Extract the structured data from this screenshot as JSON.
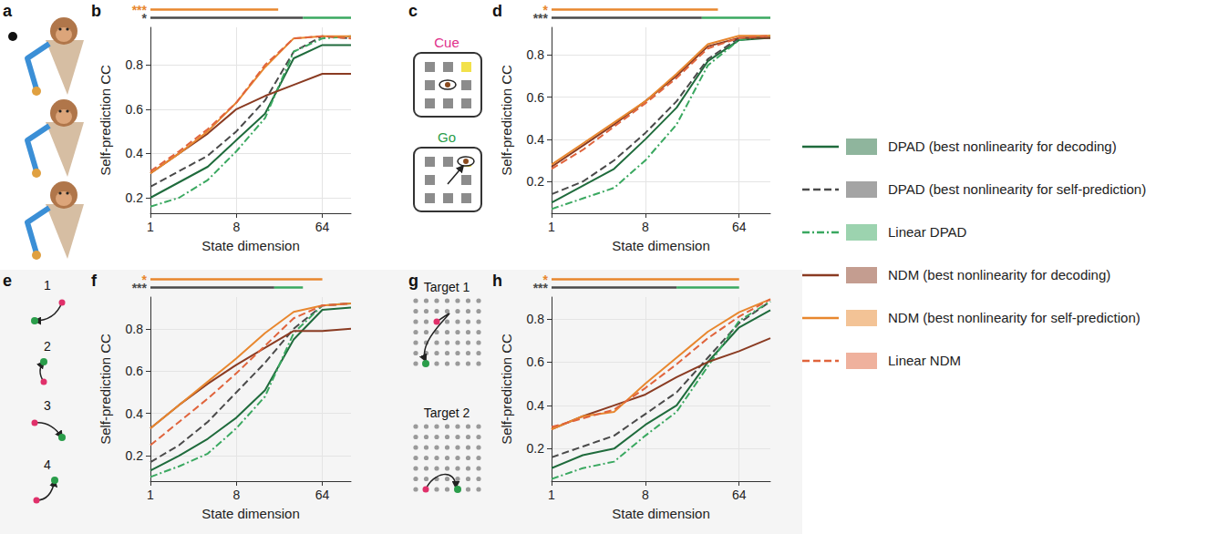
{
  "chart_data": [
    {
      "type": "line",
      "panel_label": "b",
      "x_label": "State dimension",
      "y_label": "Self-prediction CC",
      "log": "x",
      "grid": true,
      "legend": "right",
      "x": [
        1,
        2,
        4,
        8,
        16,
        32,
        64,
        128
      ],
      "xlim": [
        1,
        128
      ],
      "xticks": [
        1,
        8,
        64
      ],
      "ylim": [
        0.13,
        0.97
      ],
      "yticks": [
        0.2,
        0.4,
        0.6,
        0.8
      ],
      "series": [
        {
          "name": "DPAD (best nonlinearity for decoding)",
          "color": "#1f6b3c",
          "line_style": "solid",
          "values": [
            0.2,
            0.27,
            0.34,
            0.46,
            0.58,
            0.83,
            0.89,
            0.89
          ]
        },
        {
          "name": "DPAD (best nonlinearity for self-prediction)",
          "color": "#4a4a4a",
          "line_style": "dashed",
          "values": [
            0.25,
            0.32,
            0.39,
            0.5,
            0.64,
            0.86,
            0.93,
            0.92
          ]
        },
        {
          "name": "Linear DPAD",
          "color": "#3aa860",
          "line_style": "dashdot",
          "values": [
            0.16,
            0.2,
            0.28,
            0.41,
            0.56,
            0.86,
            0.92,
            0.93
          ]
        },
        {
          "name": "NDM (best nonlinearity for decoding)",
          "color": "#8a3b22",
          "line_style": "solid",
          "values": [
            0.31,
            0.4,
            0.49,
            0.6,
            0.66,
            0.71,
            0.76,
            0.76
          ]
        },
        {
          "name": "NDM (best nonlinearity for self-prediction)",
          "color": "#e8872e",
          "line_style": "solid",
          "values": [
            0.31,
            0.4,
            0.5,
            0.63,
            0.79,
            0.92,
            0.93,
            0.93
          ]
        },
        {
          "name": "Linear NDM",
          "color": "#e0643c",
          "line_style": "dashed",
          "values": [
            0.32,
            0.41,
            0.51,
            0.63,
            0.8,
            0.92,
            0.93,
            0.92
          ]
        }
      ],
      "significance": [
        {
          "label": "***",
          "color": "#e8872e",
          "segments": [
            {
              "from": 1,
              "to": 22,
              "color": "#e8872e"
            }
          ]
        },
        {
          "label": "*",
          "color": "#4a4a4a",
          "segments": [
            {
              "from": 1,
              "to": 40,
              "color": "#4a4a4a"
            },
            {
              "from": 40,
              "to": 128,
              "color": "#3aa860"
            }
          ]
        }
      ]
    },
    {
      "type": "line",
      "panel_label": "d",
      "x_label": "State dimension",
      "y_label": "Self-prediction CC",
      "log": "x",
      "grid": true,
      "legend": "right",
      "x": [
        1,
        2,
        4,
        8,
        16,
        32,
        64,
        128
      ],
      "xlim": [
        1,
        128
      ],
      "xticks": [
        1,
        8,
        64
      ],
      "ylim": [
        0.05,
        0.93
      ],
      "yticks": [
        0.2,
        0.4,
        0.6,
        0.8
      ],
      "series": [
        {
          "name": "DPAD (best nonlinearity for decoding)",
          "color": "#1f6b3c",
          "line_style": "solid",
          "values": [
            0.1,
            0.18,
            0.26,
            0.4,
            0.55,
            0.77,
            0.87,
            0.88
          ]
        },
        {
          "name": "DPAD (best nonlinearity for self-prediction)",
          "color": "#4a4a4a",
          "line_style": "dashed",
          "values": [
            0.14,
            0.2,
            0.3,
            0.43,
            0.58,
            0.78,
            0.88,
            0.88
          ]
        },
        {
          "name": "Linear DPAD",
          "color": "#3aa860",
          "line_style": "dashdot",
          "values": [
            0.07,
            0.12,
            0.17,
            0.3,
            0.47,
            0.75,
            0.87,
            0.89
          ]
        },
        {
          "name": "NDM (best nonlinearity for decoding)",
          "color": "#8a3b22",
          "line_style": "solid",
          "values": [
            0.27,
            0.37,
            0.47,
            0.58,
            0.7,
            0.84,
            0.88,
            0.88
          ]
        },
        {
          "name": "NDM (best nonlinearity for self-prediction)",
          "color": "#e8872e",
          "line_style": "solid",
          "values": [
            0.28,
            0.38,
            0.48,
            0.58,
            0.71,
            0.85,
            0.89,
            0.89
          ]
        },
        {
          "name": "Linear NDM",
          "color": "#e0643c",
          "line_style": "dashed",
          "values": [
            0.26,
            0.35,
            0.46,
            0.57,
            0.69,
            0.83,
            0.88,
            0.89
          ]
        }
      ],
      "significance": [
        {
          "label": "*",
          "color": "#e8872e",
          "segments": [
            {
              "from": 1,
              "to": 40,
              "color": "#e8872e"
            }
          ]
        },
        {
          "label": "***",
          "color": "#4a4a4a",
          "segments": [
            {
              "from": 1,
              "to": 28,
              "color": "#4a4a4a"
            },
            {
              "from": 28,
              "to": 128,
              "color": "#3aa860"
            }
          ]
        }
      ]
    },
    {
      "type": "line",
      "panel_label": "f",
      "x_label": "State dimension",
      "y_label": "Self-prediction CC",
      "log": "x",
      "grid": true,
      "legend": "right",
      "x": [
        1,
        2,
        4,
        8,
        16,
        32,
        64,
        128
      ],
      "xlim": [
        1,
        128
      ],
      "xticks": [
        1,
        8,
        64
      ],
      "ylim": [
        0.08,
        0.95
      ],
      "yticks": [
        0.2,
        0.4,
        0.6,
        0.8
      ],
      "series": [
        {
          "name": "DPAD (best nonlinearity for decoding)",
          "color": "#1f6b3c",
          "line_style": "solid",
          "values": [
            0.13,
            0.2,
            0.28,
            0.38,
            0.51,
            0.75,
            0.89,
            0.9
          ]
        },
        {
          "name": "DPAD (best nonlinearity for self-prediction)",
          "color": "#4a4a4a",
          "line_style": "dashed",
          "values": [
            0.17,
            0.25,
            0.36,
            0.5,
            0.64,
            0.8,
            0.91,
            0.92
          ]
        },
        {
          "name": "Linear DPAD",
          "color": "#3aa860",
          "line_style": "dashdot",
          "values": [
            0.1,
            0.15,
            0.21,
            0.33,
            0.48,
            0.78,
            0.91,
            0.92
          ]
        },
        {
          "name": "NDM (best nonlinearity for decoding)",
          "color": "#8a3b22",
          "line_style": "solid",
          "values": [
            0.33,
            0.44,
            0.54,
            0.63,
            0.71,
            0.79,
            0.79,
            0.8
          ]
        },
        {
          "name": "NDM (best nonlinearity for self-prediction)",
          "color": "#e8872e",
          "line_style": "solid",
          "values": [
            0.33,
            0.44,
            0.55,
            0.66,
            0.78,
            0.88,
            0.91,
            0.92
          ]
        },
        {
          "name": "Linear NDM",
          "color": "#e0643c",
          "line_style": "dashed",
          "values": [
            0.25,
            0.36,
            0.47,
            0.59,
            0.72,
            0.85,
            0.91,
            0.92
          ]
        }
      ],
      "significance": [
        {
          "label": "*",
          "color": "#e8872e",
          "segments": [
            {
              "from": 1,
              "to": 64,
              "color": "#e8872e"
            }
          ]
        },
        {
          "label": "***",
          "color": "#4a4a4a",
          "segments": [
            {
              "from": 1,
              "to": 20,
              "color": "#4a4a4a"
            },
            {
              "from": 20,
              "to": 40,
              "color": "#3aa860"
            }
          ]
        }
      ]
    },
    {
      "type": "line",
      "panel_label": "h",
      "x_label": "State dimension",
      "y_label": "Self-prediction CC",
      "log": "x",
      "grid": true,
      "legend": "right",
      "x": [
        1,
        2,
        4,
        8,
        16,
        32,
        64,
        128
      ],
      "xlim": [
        1,
        128
      ],
      "xticks": [
        1,
        8,
        64
      ],
      "ylim": [
        0.05,
        0.9
      ],
      "yticks": [
        0.2,
        0.4,
        0.6,
        0.8
      ],
      "series": [
        {
          "name": "DPAD (best nonlinearity for decoding)",
          "color": "#1f6b3c",
          "line_style": "solid",
          "values": [
            0.11,
            0.17,
            0.2,
            0.31,
            0.4,
            0.6,
            0.76,
            0.84
          ]
        },
        {
          "name": "DPAD (best nonlinearity for self-prediction)",
          "color": "#4a4a4a",
          "line_style": "dashed",
          "values": [
            0.16,
            0.21,
            0.26,
            0.36,
            0.46,
            0.62,
            0.78,
            0.88
          ]
        },
        {
          "name": "Linear DPAD",
          "color": "#3aa860",
          "line_style": "dashdot",
          "values": [
            0.06,
            0.11,
            0.14,
            0.26,
            0.37,
            0.58,
            0.79,
            0.88
          ]
        },
        {
          "name": "NDM (best nonlinearity for decoding)",
          "color": "#8a3b22",
          "line_style": "solid",
          "values": [
            0.29,
            0.35,
            0.4,
            0.45,
            0.53,
            0.6,
            0.65,
            0.71
          ]
        },
        {
          "name": "NDM (best nonlinearity for self-prediction)",
          "color": "#e8872e",
          "line_style": "solid",
          "values": [
            0.29,
            0.35,
            0.37,
            0.5,
            0.62,
            0.74,
            0.83,
            0.89
          ]
        },
        {
          "name": "Linear NDM",
          "color": "#e0643c",
          "line_style": "dashed",
          "values": [
            0.3,
            0.34,
            0.38,
            0.48,
            0.59,
            0.71,
            0.81,
            0.89
          ]
        }
      ],
      "significance": [
        {
          "label": "*",
          "color": "#e8872e",
          "segments": [
            {
              "from": 1,
              "to": 64,
              "color": "#e8872e"
            }
          ]
        },
        {
          "label": "***",
          "color": "#4a4a4a",
          "segments": [
            {
              "from": 1,
              "to": 16,
              "color": "#4a4a4a"
            },
            {
              "from": 16,
              "to": 64,
              "color": "#3aa860"
            }
          ]
        }
      ]
    }
  ],
  "diagrams": [
    {
      "panel_label": "a"
    },
    {
      "panel_label": "c",
      "texts": [
        "Cue",
        "Go"
      ]
    },
    {
      "panel_label": "e",
      "texts": [
        "1",
        "2",
        "3",
        "4"
      ]
    },
    {
      "panel_label": "g",
      "texts": [
        "Target 1",
        "Target 2"
      ]
    }
  ]
}
